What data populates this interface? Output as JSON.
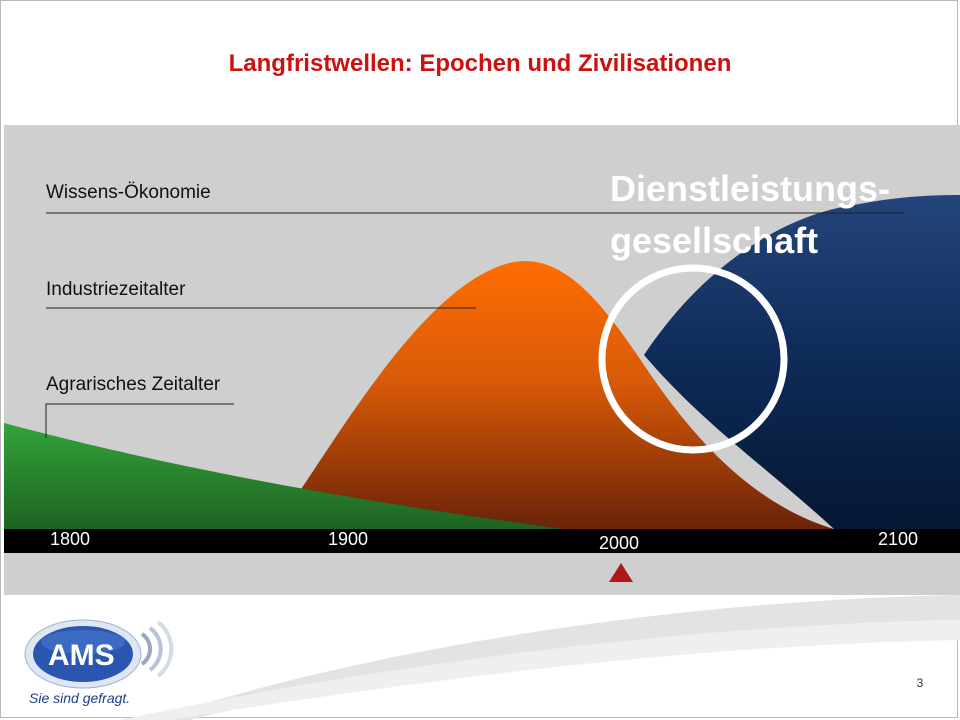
{
  "slide": {
    "title": "Langfristwellen: Epochen und Zivilisationen",
    "page_number": "3"
  },
  "diagram": {
    "epochs": [
      {
        "label": "Wissens-Ökonomie",
        "color": "#1e3a6e"
      },
      {
        "label": "Industriezeitalter",
        "color": "#ee6a00"
      },
      {
        "label": "Agrarisches Zeitalter",
        "color": "#2e8b30"
      }
    ],
    "highlight_label_line1": "Dienstleistungs-",
    "highlight_label_line2": "gesellschaft",
    "timeline_years": [
      "1800",
      "1900",
      "2000",
      "2100"
    ],
    "current_marker": "2000",
    "colors": {
      "background": "#cfcfcf",
      "timeline_bar": "#000000",
      "marker": "#b01818",
      "highlight_circle": "#ffffff"
    }
  },
  "logo": {
    "text": "AMS",
    "tagline": "Sie sind gefragt."
  }
}
